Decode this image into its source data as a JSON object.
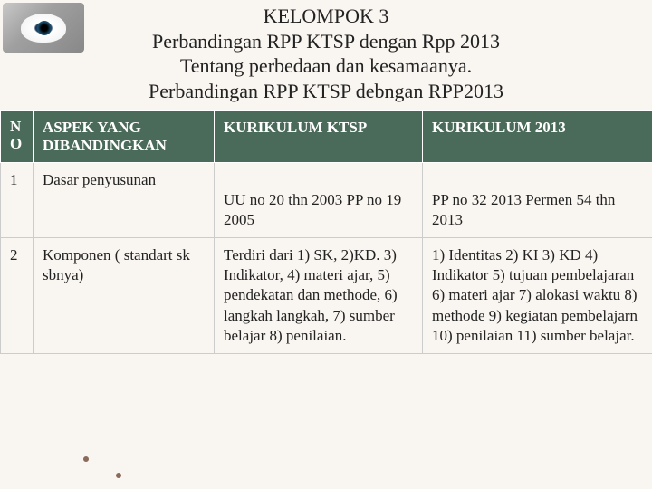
{
  "header": {
    "line1": "KELOMPOK 3",
    "line2": "Perbandingan RPP KTSP dengan Rpp 2013",
    "line3": "Tentang perbedaan dan kesamaanya.",
    "line4": "Perbandingan RPP KTSP debngan RPP2013"
  },
  "table": {
    "columns": [
      "NO",
      "ASPEK YANG DIBANDINGKAN",
      "KURIKULUM KTSP",
      "KURIKULUM 2013"
    ],
    "col_widths": [
      "36px",
      "200px",
      "230px",
      "254px"
    ],
    "header_bg": "#4a6a5a",
    "header_fg": "#ffffff",
    "cell_bg": "#f9f5f0",
    "border_color": "#cccccc",
    "font_size": 17,
    "rows": [
      {
        "no": "1",
        "aspek": "Dasar penyusunan",
        "ktsp": "UU no 20 thn 2003 PP no 19 2005",
        "k2013": "PP no 32 2013 Permen 54 thn 2013"
      },
      {
        "no": "2",
        "aspek": "Komponen ( standart sk sbnya)",
        "ktsp": "Terdiri dari  1) SK, 2)KD. 3) Indikator, 4) materi ajar, 5) pendekatan dan methode, 6) langkah langkah, 7) sumber belajar 8) penilaian.",
        "k2013": "1) Identitas 2) KI 3) KD 4) Indikator 5) tujuan pembelajaran 6) materi ajar 7) alokasi waktu 8) methode 9) kegiatan pembelajarn 10) penilaian 11) sumber belajar."
      }
    ]
  },
  "background_color": "#f9f5f0",
  "dot_color": "#8a6a5a"
}
